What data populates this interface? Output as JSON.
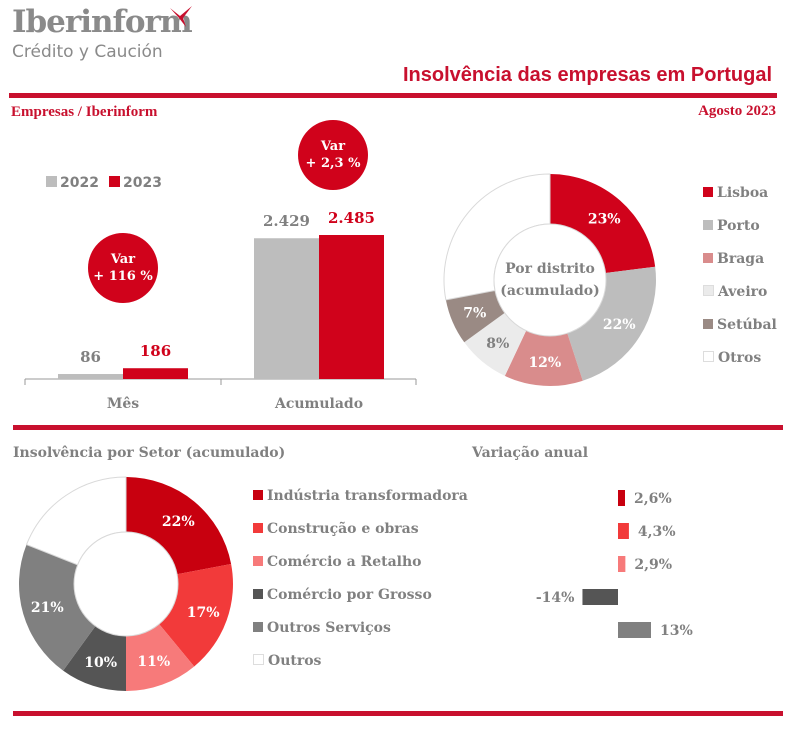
{
  "logo": {
    "name": "Iberinform",
    "tagline": "Crédito y Caución"
  },
  "header": {
    "title": "Insolvência das empresas em Portugal",
    "subtitle_left": "Empresas / Iberinform",
    "subtitle_right": "Agosto 2023"
  },
  "colors": {
    "brand_red": "#c8102e",
    "bar_2022": "#bdbdbd",
    "bar_2023": "#d0021b"
  },
  "chart_data": [
    {
      "type": "bar",
      "title": "",
      "categories": [
        "Mês",
        "Acumulado"
      ],
      "series": [
        {
          "name": "2022",
          "values": [
            86,
            2429
          ],
          "labels": [
            "86",
            "2.429"
          ],
          "color": "#bdbdbd"
        },
        {
          "name": "2023",
          "values": [
            186,
            2485
          ],
          "labels": [
            "186",
            "2.485"
          ],
          "color": "#d0021b"
        }
      ],
      "annotations": [
        {
          "category": "Mês",
          "line1": "Var",
          "line2": "+ 116 %"
        },
        {
          "category": "Acumulado",
          "line1": "Var",
          "line2": "+ 2,3 %"
        }
      ],
      "legend": "top-left",
      "ylim": [
        0,
        2500
      ]
    },
    {
      "type": "pie",
      "title": "Por distrito (acumulado)",
      "center_label": [
        "Por distrito",
        "(acumulado)"
      ],
      "slices": [
        {
          "label": "Lisboa",
          "value": 23,
          "text": "23%",
          "color": "#d0021b",
          "text_color": "#ffffff"
        },
        {
          "label": "Porto",
          "value": 22,
          "text": "22%",
          "color": "#bdbdbd",
          "text_color": "#ffffff"
        },
        {
          "label": "Braga",
          "value": 12,
          "text": "12%",
          "color": "#d98c8c",
          "text_color": "#ffffff"
        },
        {
          "label": "Aveiro",
          "value": 8,
          "text": "8%",
          "color": "#ebebeb",
          "text_color": "#808080"
        },
        {
          "label": "Setúbal",
          "value": 7,
          "text": "7%",
          "color": "#9a8a84",
          "text_color": "#ffffff"
        },
        {
          "label": "Otros",
          "value": 28,
          "text": "",
          "color": "#ffffff",
          "text_color": "#808080"
        }
      ],
      "legend": "right"
    },
    {
      "type": "pie",
      "title": "Insolvência por Setor (acumulado)",
      "slices": [
        {
          "label": "Indústria transformadora",
          "value": 22,
          "text": "22%",
          "color": "#c8000f",
          "text_color": "#ffffff"
        },
        {
          "label": "Construção e obras",
          "value": 17,
          "text": "17%",
          "color": "#f23a3a",
          "text_color": "#ffffff"
        },
        {
          "label": "Comércio a Retalho",
          "value": 11,
          "text": "11%",
          "color": "#f77a7a",
          "text_color": "#ffffff"
        },
        {
          "label": "Comércio por Grosso",
          "value": 10,
          "text": "10%",
          "color": "#555555",
          "text_color": "#ffffff"
        },
        {
          "label": "Outros Serviços",
          "value": 21,
          "text": "21%",
          "color": "#808080",
          "text_color": "#ffffff"
        },
        {
          "label": "Outros",
          "value": 19,
          "text": "",
          "color": "#ffffff",
          "text_color": "#808080"
        }
      ],
      "legend": "right"
    },
    {
      "type": "bar",
      "orientation": "horizontal",
      "title": "Variação anual",
      "categories": [
        "Indústria transformadora",
        "Construção e obras",
        "Comércio a Retalho",
        "Comércio por Grosso",
        "Outros Serviços"
      ],
      "values": [
        2.6,
        4.3,
        2.9,
        -14,
        13
      ],
      "labels": [
        "2,6%",
        "4,3%",
        "2,9%",
        "-14%",
        "13%"
      ],
      "colors": [
        "#c8000f",
        "#f23a3a",
        "#f77a7a",
        "#555555",
        "#808080"
      ]
    }
  ]
}
